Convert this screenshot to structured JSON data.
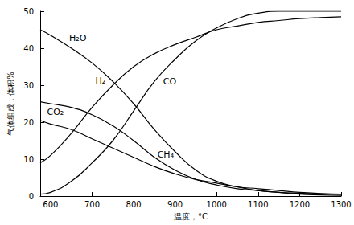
{
  "chart_data": {
    "type": "line",
    "xlabel": "温度，°C",
    "ylabel": "气体组成，体积%",
    "x": [
      575,
      600,
      650,
      700,
      750,
      800,
      850,
      900,
      950,
      1000,
      1050,
      1100,
      1150,
      1200,
      1250,
      1300
    ],
    "series": [
      {
        "name": "H₂O",
        "color": "#000000",
        "values": [
          45,
          43.5,
          40,
          36,
          31,
          25,
          18,
          12,
          7,
          4,
          2.5,
          1.5,
          1,
          0.5,
          0.3,
          0.2
        ]
      },
      {
        "name": "H₂",
        "color": "#000000",
        "values": [
          9,
          11,
          17,
          24,
          30,
          35,
          38.5,
          41,
          43,
          45,
          46,
          47,
          47.5,
          48,
          48.3,
          48.5
        ]
      },
      {
        "name": "CO₂",
        "color": "#000000",
        "values": [
          25.5,
          25,
          24,
          22,
          19,
          15,
          10.5,
          7,
          4.5,
          3,
          2,
          1.5,
          1,
          0.8,
          0.6,
          0.5
        ]
      },
      {
        "name": "CO",
        "color": "#000000",
        "values": [
          0.5,
          1,
          4,
          9,
          15,
          23,
          31,
          37,
          42,
          45.5,
          48,
          49.5,
          50,
          50,
          50,
          50
        ]
      },
      {
        "name": "CH₄",
        "color": "#000000",
        "values": [
          20.5,
          19.5,
          18,
          15.5,
          13,
          10.5,
          8,
          6,
          4.5,
          3.5,
          2.5,
          2,
          1.5,
          1,
          0.7,
          0.5
        ]
      }
    ],
    "xlim": [
      575,
      1300
    ],
    "ylim": [
      0,
      50
    ],
    "xticks": [
      600,
      700,
      800,
      900,
      1000,
      1100,
      1200,
      1300
    ],
    "yticks": [
      0,
      10,
      20,
      30,
      40,
      50
    ],
    "grid": false
  }
}
